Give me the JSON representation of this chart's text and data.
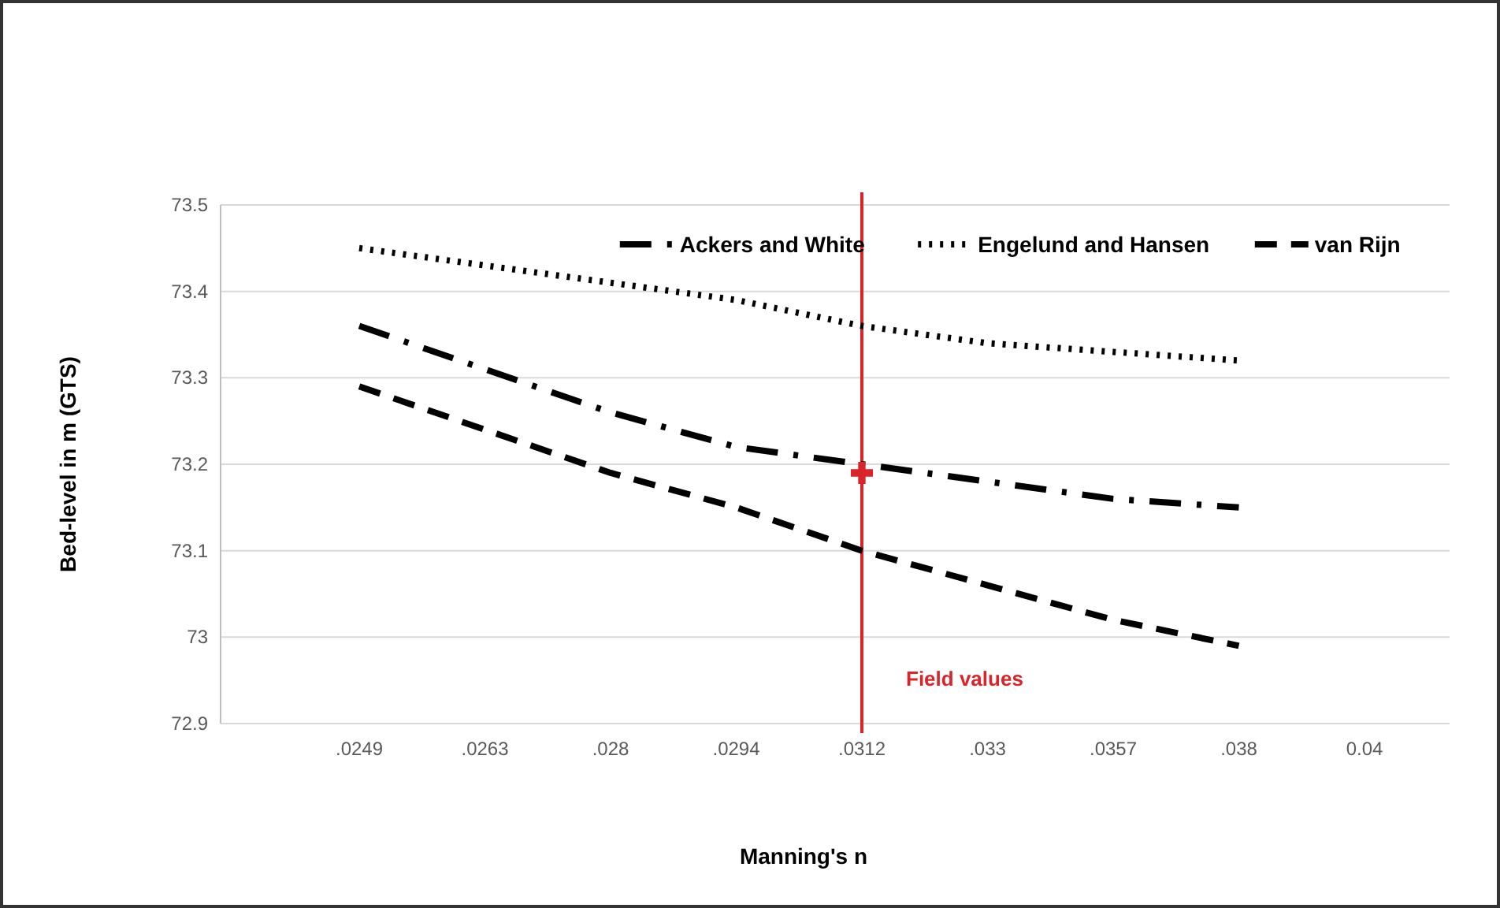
{
  "chart_data": {
    "type": "line",
    "xlabel": "Manning's n",
    "ylabel": "Bed-level in m (GTS)",
    "categories": [
      ".0249",
      ".0263",
      ".028",
      ".0294",
      ".0312",
      ".033",
      ".0357",
      ".038",
      "0.04"
    ],
    "series": [
      {
        "name": "Ackers and White",
        "color": "#000000",
        "line_style": "dashdot",
        "values": [
          73.36,
          73.31,
          73.26,
          73.22,
          73.2,
          73.18,
          73.16,
          73.15,
          null
        ]
      },
      {
        "name": "Engelund and Hansen",
        "color": "#000000",
        "line_style": "dotted",
        "values": [
          73.45,
          73.43,
          73.41,
          73.39,
          73.36,
          73.34,
          73.33,
          73.32,
          null
        ]
      },
      {
        "name": "van Rijn",
        "color": "#000000",
        "line_style": "dashed",
        "values": [
          73.29,
          73.24,
          73.19,
          73.15,
          73.1,
          73.06,
          73.02,
          72.99,
          null
        ]
      },
      {
        "type": "scatter",
        "color": "#d9252a",
        "marker": "cross",
        "x": [
          ".0312"
        ],
        "values": [
          73.19
        ]
      }
    ],
    "ylim": [
      72.9,
      73.5
    ],
    "yticks": [
      72.9,
      73,
      73.1,
      73.2,
      73.3,
      73.4,
      73.5
    ],
    "grid": "y",
    "legend": "top right",
    "ref_lines": [
      {
        "axis": "x",
        "value": ".0312",
        "label": "Field values",
        "color": "#d9252a"
      }
    ]
  }
}
